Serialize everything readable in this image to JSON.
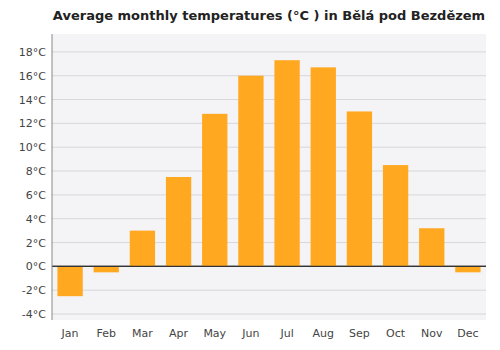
{
  "chart_data": {
    "type": "bar",
    "title": "Average monthly temperatures (°C ) in Bělá pod Bezdězem",
    "categories": [
      "Jan",
      "Feb",
      "Mar",
      "Apr",
      "May",
      "Jun",
      "Jul",
      "Aug",
      "Sep",
      "Oct",
      "Nov",
      "Dec"
    ],
    "values": [
      -2.5,
      -0.5,
      3.0,
      7.5,
      12.8,
      16.0,
      17.3,
      16.7,
      13.0,
      8.5,
      3.2,
      -0.5
    ],
    "color": "#FFA820",
    "ylim": [
      -4.5,
      19.5
    ],
    "yticks": [
      {
        "value": -4,
        "label": "-4°C"
      },
      {
        "value": -2,
        "label": "-2°C"
      },
      {
        "value": 0,
        "label": "0°C"
      },
      {
        "value": 2,
        "label": "2°C"
      },
      {
        "value": 4,
        "label": "4°C"
      },
      {
        "value": 6,
        "label": "6°C"
      },
      {
        "value": 8,
        "label": "8°C"
      },
      {
        "value": 10,
        "label": "10°C"
      },
      {
        "value": 12,
        "label": "12°C"
      },
      {
        "value": 14,
        "label": "14°C"
      },
      {
        "value": 16,
        "label": "16°C"
      },
      {
        "value": 18,
        "label": "18°C"
      }
    ],
    "grid": true
  }
}
